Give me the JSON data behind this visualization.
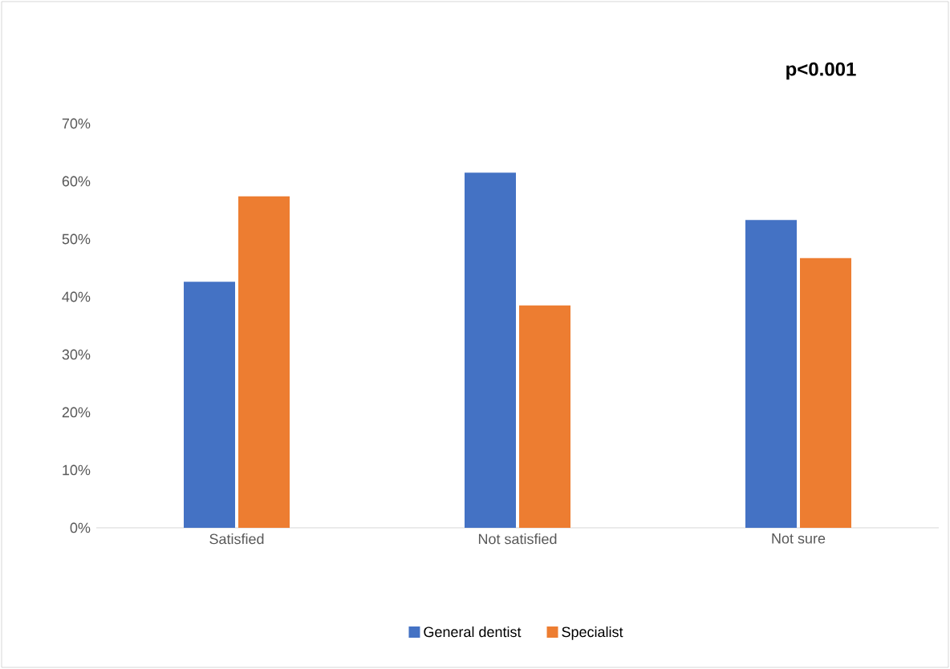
{
  "chart_data": {
    "type": "bar",
    "categories": [
      "Satisfied",
      "Not satisfied",
      "Not sure"
    ],
    "series": [
      {
        "name": "General dentist",
        "color": "#4472c4",
        "values": [
          42.6,
          61.5,
          53.3
        ]
      },
      {
        "name": "Specialist",
        "color": "#ed7d31",
        "values": [
          57.4,
          38.5,
          46.7
        ]
      }
    ],
    "ylim": [
      0,
      70
    ],
    "yticks": [
      {
        "value": 0,
        "label": "0%"
      },
      {
        "value": 10,
        "label": "10%"
      },
      {
        "value": 20,
        "label": "20%"
      },
      {
        "value": 30,
        "label": "30%"
      },
      {
        "value": 40,
        "label": "40%"
      },
      {
        "value": 50,
        "label": "50%"
      },
      {
        "value": 60,
        "label": "60%"
      },
      {
        "value": 70,
        "label": "70%"
      }
    ],
    "annotations": [
      "**p<0.001**"
    ],
    "grid": false,
    "legend": "bottom"
  }
}
